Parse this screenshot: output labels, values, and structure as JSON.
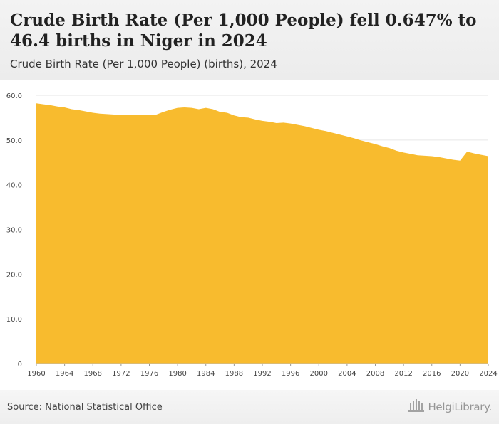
{
  "title": "Crude Birth Rate (Per 1,000 People) fell 0.647% to 46.4 births in Niger in 2024",
  "subtitle": "Crude Birth Rate (Per 1,000 People) (births), 2024",
  "source": "Source: National Statistical Office",
  "brand": "HelgiLibrary.",
  "brand_icon": "library-columns-icon",
  "colors": {
    "area": "#f8bb2e",
    "grid": "#e6e6e6",
    "axis_text": "#444444"
  },
  "chart_data": {
    "type": "area",
    "title": "Crude Birth Rate (Per 1,000 People) fell 0.647% to 46.4 births in Niger in 2024",
    "subtitle": "Crude Birth Rate (Per 1,000 People) (births), 2024",
    "xlabel": "",
    "ylabel": "",
    "xlim": [
      1960,
      2024
    ],
    "ylim": [
      0,
      60
    ],
    "grid": true,
    "legend": "none",
    "x_ticks": [
      1960,
      1964,
      1968,
      1972,
      1976,
      1980,
      1984,
      1988,
      1992,
      1996,
      2000,
      2004,
      2008,
      2012,
      2016,
      2020,
      2024
    ],
    "y_ticks": [
      "0",
      "10.0",
      "20.0",
      "30.0",
      "40.0",
      "50.0",
      "60.0"
    ],
    "y_tick_values": [
      0,
      10,
      20,
      30,
      40,
      50,
      60
    ],
    "series": [
      {
        "x": [
          1960,
          1961,
          1962,
          1963,
          1964,
          1965,
          1966,
          1967,
          1968,
          1969,
          1970,
          1971,
          1972,
          1973,
          1974,
          1975,
          1976,
          1977,
          1978,
          1979,
          1980,
          1981,
          1982,
          1983,
          1984,
          1985,
          1986,
          1987,
          1988,
          1989,
          1990,
          1991,
          1992,
          1993,
          1994,
          1995,
          1996,
          1997,
          1998,
          1999,
          2000,
          2001,
          2002,
          2003,
          2004,
          2005,
          2006,
          2007,
          2008,
          2009,
          2010,
          2011,
          2012,
          2013,
          2014,
          2015,
          2016,
          2017,
          2018,
          2019,
          2020,
          2021,
          2022,
          2023,
          2024
        ],
        "values": [
          58.2,
          58.0,
          57.8,
          57.5,
          57.3,
          56.9,
          56.7,
          56.4,
          56.1,
          55.9,
          55.8,
          55.7,
          55.6,
          55.6,
          55.6,
          55.6,
          55.6,
          55.7,
          56.3,
          56.8,
          57.2,
          57.3,
          57.2,
          56.9,
          57.2,
          56.9,
          56.3,
          56.1,
          55.5,
          55.1,
          55.0,
          54.6,
          54.3,
          54.1,
          53.8,
          53.9,
          53.7,
          53.4,
          53.1,
          52.7,
          52.3,
          52.0,
          51.6,
          51.2,
          50.8,
          50.4,
          49.9,
          49.5,
          49.1,
          48.6,
          48.2,
          47.6,
          47.2,
          46.9,
          46.6,
          46.5,
          46.4,
          46.2,
          45.9,
          45.6,
          45.4,
          47.4,
          47.0,
          46.7,
          46.4
        ]
      }
    ]
  }
}
